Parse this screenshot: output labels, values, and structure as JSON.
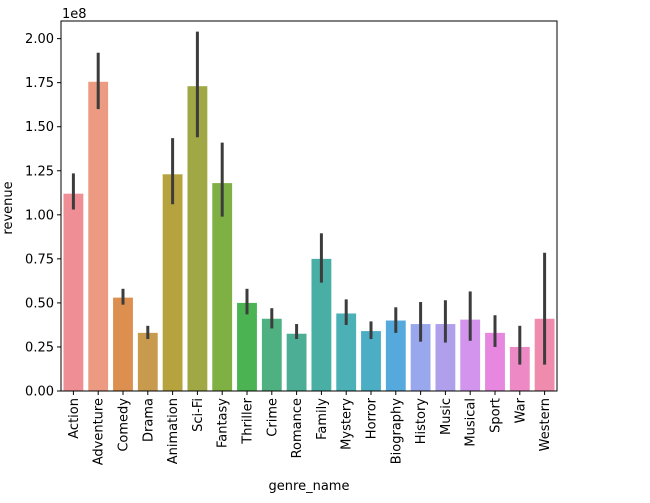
{
  "chart_data": {
    "type": "bar",
    "title": "",
    "xlabel": "genre_name",
    "ylabel": "revenue",
    "y_scale_label": "1e8",
    "ylim": [
      0,
      210000000
    ],
    "y_ticks": [
      0,
      25000000,
      50000000,
      75000000,
      100000000,
      125000000,
      150000000,
      175000000,
      200000000
    ],
    "y_tick_labels": [
      "0.00",
      "0.25",
      "0.50",
      "0.75",
      "1.00",
      "1.25",
      "1.50",
      "1.75",
      "2.00"
    ],
    "grid": false,
    "legend": "none",
    "categories": [
      "Action",
      "Adventure",
      "Comedy",
      "Drama",
      "Animation",
      "Sci-Fi",
      "Fantasy",
      "Thriller",
      "Crime",
      "Romance",
      "Family",
      "Mystery",
      "Horror",
      "Biography",
      "History",
      "Music",
      "Musical",
      "Sport",
      "War",
      "Western"
    ],
    "values": [
      112000000,
      175500000,
      53000000,
      33000000,
      123000000,
      173000000,
      118000000,
      50000000,
      41000000,
      32500000,
      75000000,
      44000000,
      34000000,
      40000000,
      38000000,
      38000000,
      40500000,
      33000000,
      25000000,
      41000000
    ],
    "error_bars": [
      [
        103000000,
        123500000
      ],
      [
        160000000,
        192000000
      ],
      [
        49000000,
        58000000
      ],
      [
        29500000,
        37000000
      ],
      [
        106000000,
        143500000
      ],
      [
        144000000,
        204000000
      ],
      [
        99000000,
        141000000
      ],
      [
        43500000,
        58000000
      ],
      [
        35500000,
        47000000
      ],
      [
        29500000,
        38000000
      ],
      [
        61500000,
        89500000
      ],
      [
        37500000,
        52000000
      ],
      [
        29500000,
        39500000
      ],
      [
        33000000,
        47500000
      ],
      [
        28000000,
        50500000
      ],
      [
        27500000,
        51500000
      ],
      [
        28500000,
        56500000
      ],
      [
        25000000,
        43000000
      ],
      [
        15000000,
        37000000
      ],
      [
        15000000,
        78500000
      ]
    ],
    "colors": [
      "#ef8f95",
      "#ec9a81",
      "#dc8f4e",
      "#c89a4e",
      "#b6a33e",
      "#9fa844",
      "#7fb043",
      "#4bb352",
      "#4fb181",
      "#4caf95",
      "#49afa5",
      "#4bb1b6",
      "#4baec5",
      "#56a9dc",
      "#99a8ec",
      "#b0a0ec",
      "#d294ec",
      "#e787e0",
      "#ed89c5",
      "#ef8cad"
    ]
  }
}
